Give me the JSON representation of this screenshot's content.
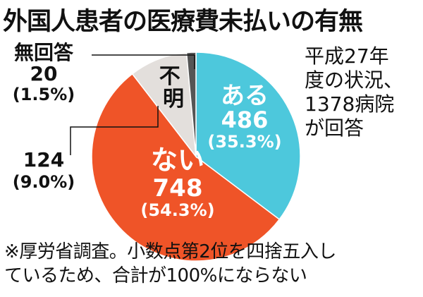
{
  "title": "外国人患者の医療費未払いの有無",
  "side_note": [
    "平成27年",
    "度の状況、",
    "1378病院",
    "が回答"
  ],
  "footnote": [
    "※厚労省調査。小数点第2位を四捨五入し",
    "ているため、合計が100%にならない"
  ],
  "chart_data": {
    "type": "pie",
    "start_angle_deg": 0,
    "direction": "clockwise",
    "slices": [
      {
        "label": "ある",
        "value": 486,
        "percent": "(35.3%)",
        "color": "#4dc8dc"
      },
      {
        "label": "ない",
        "value": 748,
        "percent": "(54.3%)",
        "color": "#ef5428"
      },
      {
        "label": "",
        "value": 124,
        "percent": "(9.0%)",
        "color": "#e3dfdc"
      },
      {
        "label": "無回答",
        "value": 20,
        "percent": "(1.5%)",
        "color": "#555555"
      }
    ],
    "inner_label": "不明"
  }
}
